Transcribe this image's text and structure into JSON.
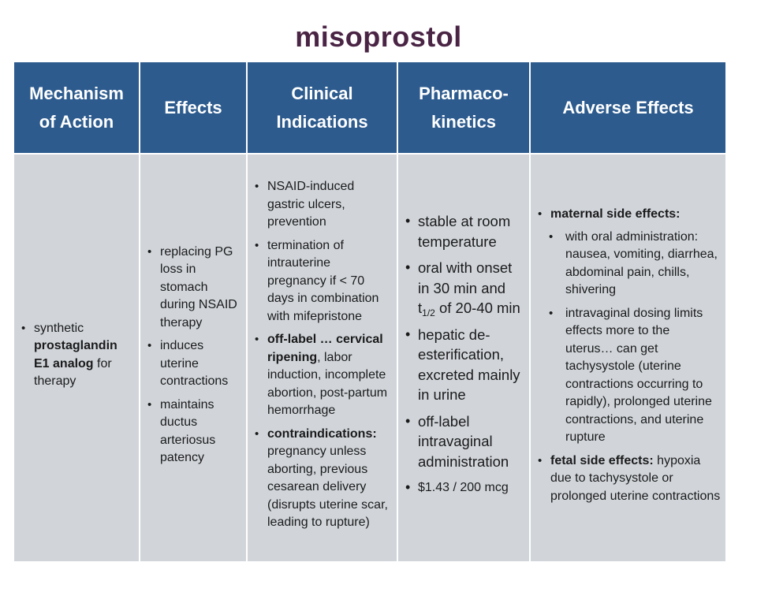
{
  "title": "misoprostol",
  "headers": {
    "mechanism": "Mechanism of Action",
    "effects": "Effects",
    "indications": "Clinical Indications",
    "pk": "Pharmaco-kinetics",
    "adverse": "Adverse Effects"
  },
  "mechanism": {
    "pre": "synthetic ",
    "bold": "prostaglandin E1 analog",
    "post": " for therapy"
  },
  "effects": [
    "replacing PG loss in stomach during NSAID therapy",
    "induces uterine contractions",
    "maintains ductus arteriosus patency"
  ],
  "indications": {
    "item1": "NSAID-induced gastric ulcers, prevention",
    "item2": "termination of intrauterine pregnancy if < 70 days in combination with mifepristone",
    "item3_bold": "off-label … cervical ripening",
    "item3_rest": ", labor induction, incomplete abortion, post-partum hemorrhage",
    "item4_bold": "contraindications:",
    "item4_rest": " pregnancy unless aborting, previous cesarean delivery (disrupts uterine scar, leading to rupture)"
  },
  "pk": {
    "item1": "stable at room temperature",
    "item2_pre": "oral with onset in 30 min and t",
    "item2_sub": "1/2",
    "item2_post": " of 20-40 min",
    "item3": "hepatic de-esterification, excreted mainly in urine",
    "item4": "off-label intravaginal administration",
    "item5": "$1.43 / 200 mcg"
  },
  "adverse": {
    "maternal_label": "maternal side effects:",
    "maternal_items": [
      "with oral administration: nausea, vomiting, diarrhea, abdominal pain, chills, shivering",
      "intravaginal dosing limits effects more to the uterus… can get tachysystole (uterine contractions occurring to rapidly), prolonged uterine contractions, and uterine rupture"
    ],
    "fetal_label": "fetal side effects:",
    "fetal_text": " hypoxia due to tachysystole or prolonged uterine contractions"
  },
  "colors": {
    "title": "#4a2444",
    "header_bg": "#2d5b8e",
    "cell_bg": "#d1d5da"
  }
}
